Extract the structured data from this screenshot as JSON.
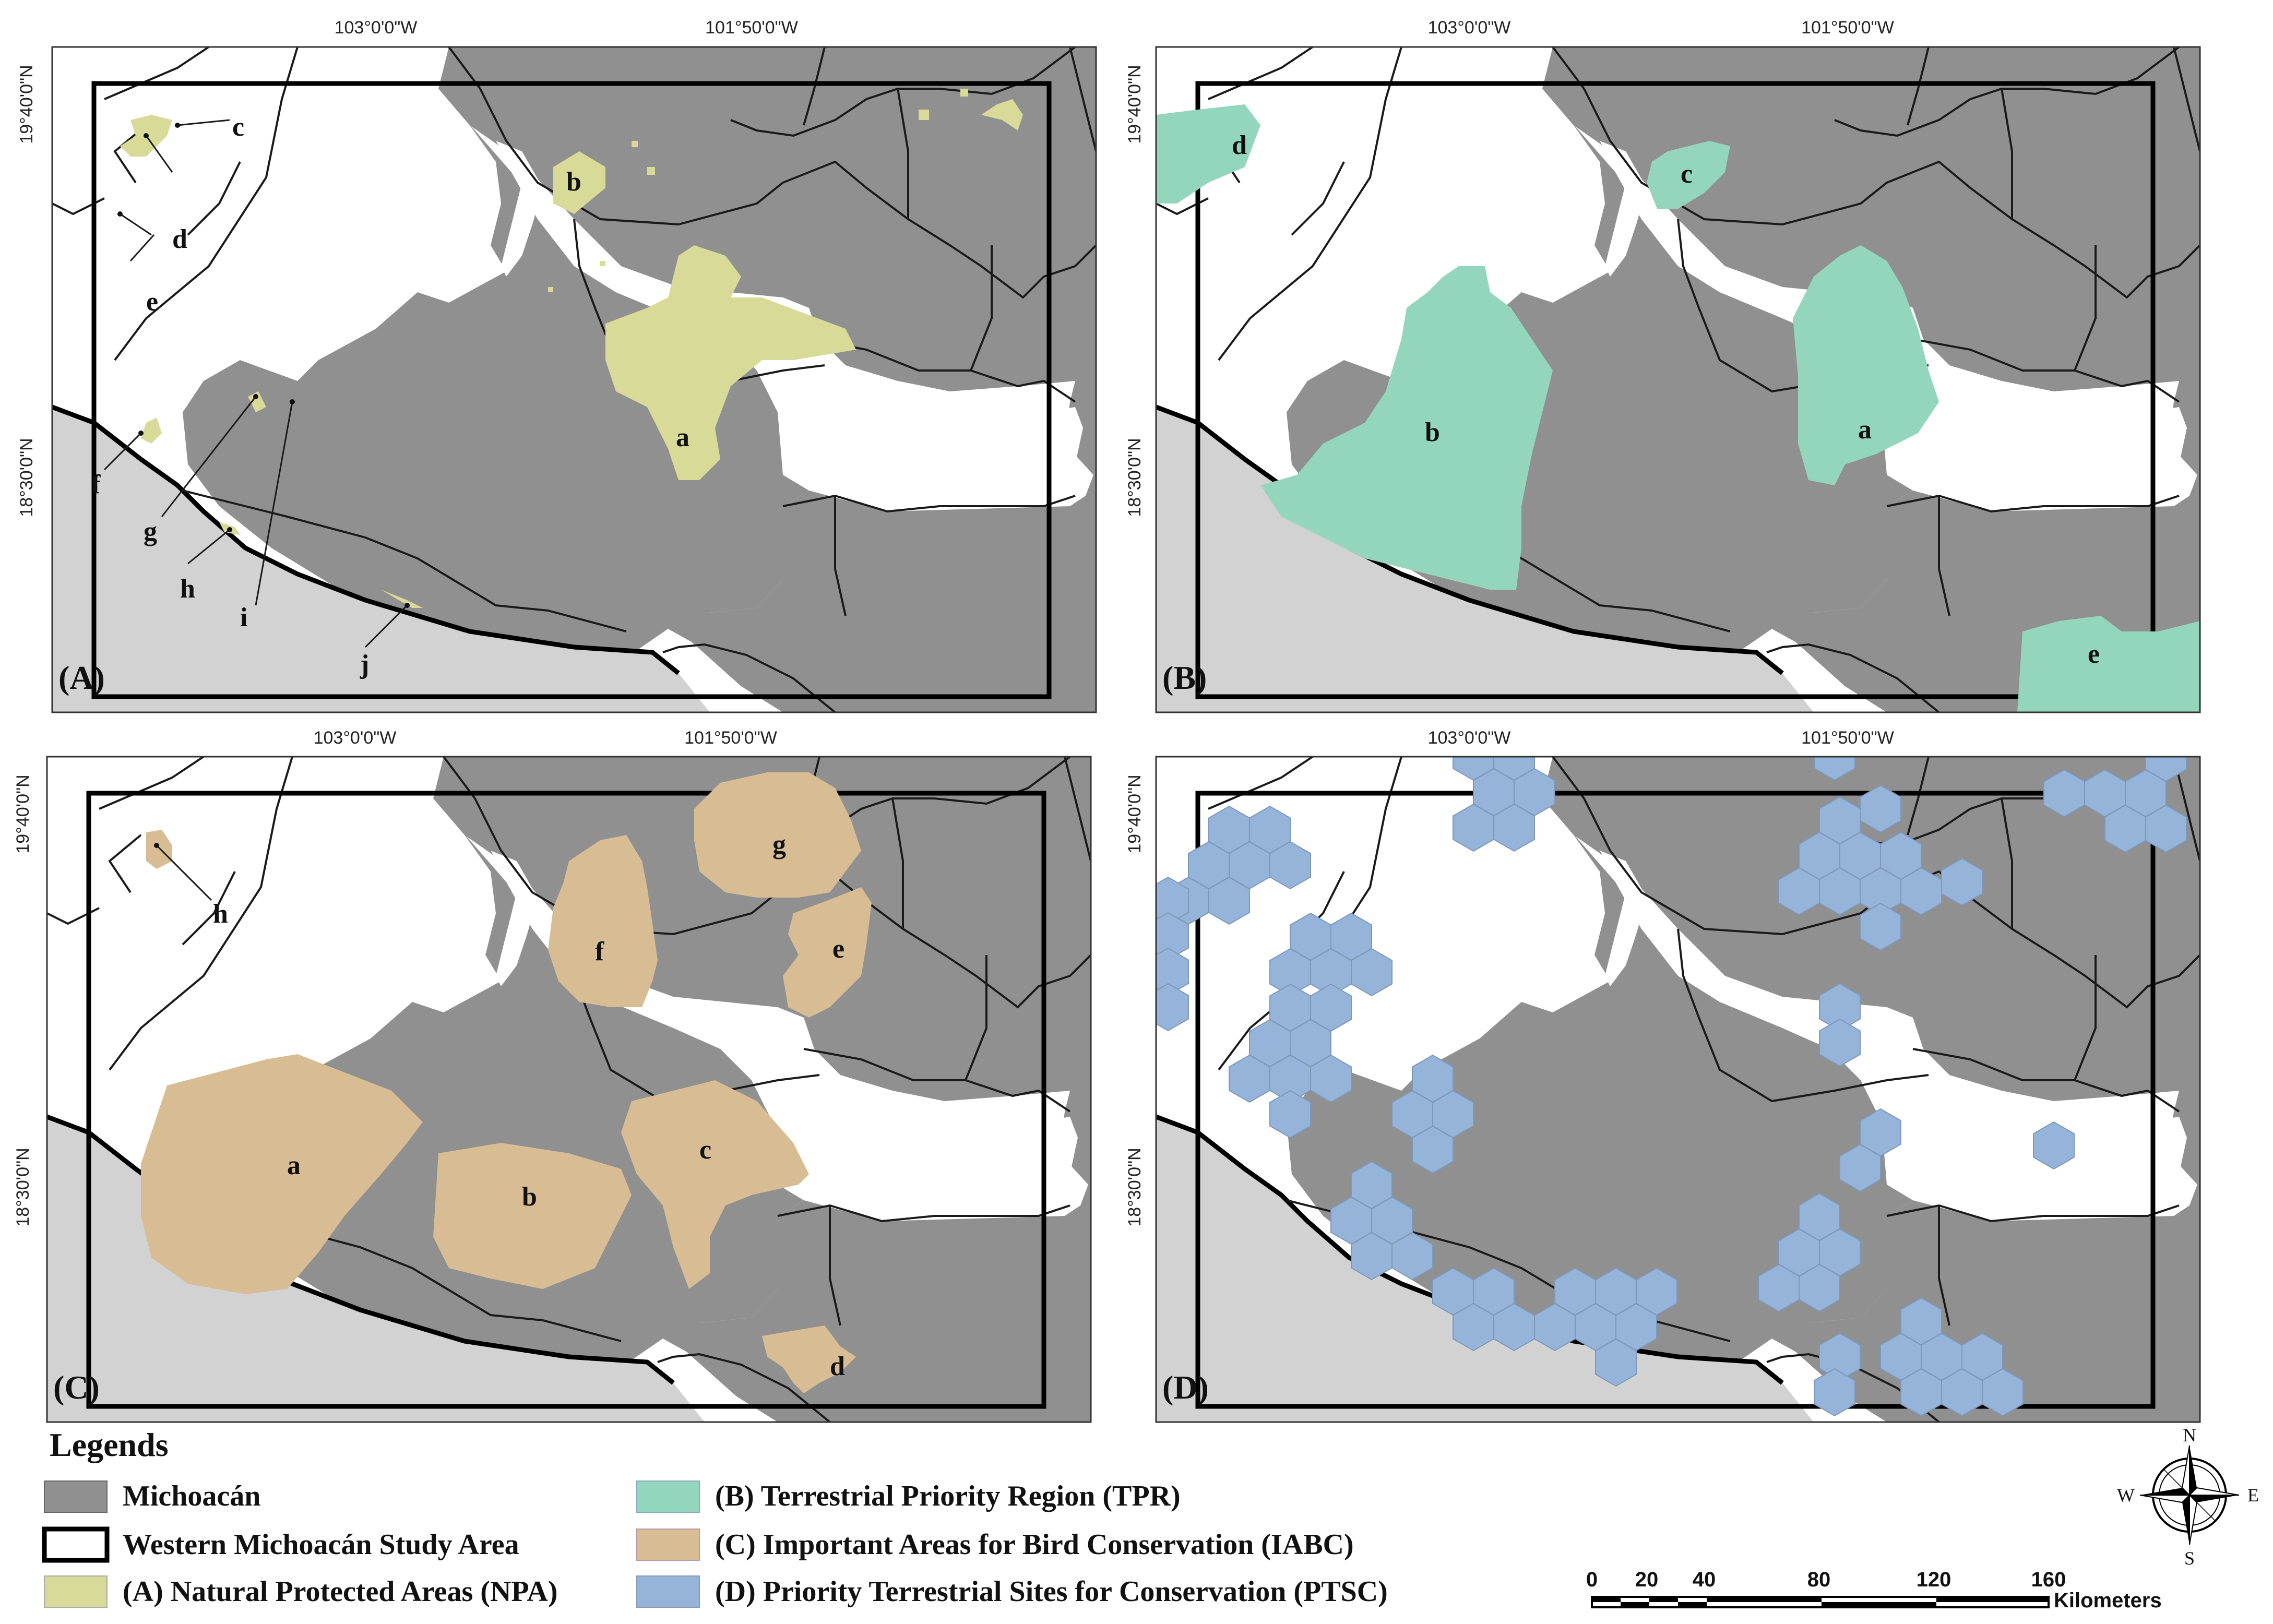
{
  "colors": {
    "michoacan": "#909090",
    "ocean": "#d2d2d2",
    "npa": "#d8db97",
    "tpr": "#94d5bd",
    "iabc": "#d8bd94",
    "ptsc": "#96b4d9",
    "line": "#1a1a1a"
  },
  "coords": {
    "lon_west": "103°0'0\"W",
    "lon_east": "101°50'0\"W",
    "lat_north": "19°40'0\"N",
    "lat_south": "18°30'0\"N"
  },
  "panels": [
    {
      "id": "A",
      "label": "(A)",
      "areas": [
        "a",
        "b",
        "c",
        "d",
        "e",
        "f",
        "g",
        "h",
        "i",
        "j"
      ]
    },
    {
      "id": "B",
      "label": "(B)",
      "areas": [
        "a",
        "b",
        "c",
        "d",
        "e"
      ]
    },
    {
      "id": "C",
      "label": "(C)",
      "areas": [
        "a",
        "b",
        "c",
        "d",
        "e",
        "f",
        "g",
        "h"
      ]
    },
    {
      "id": "D",
      "label": "(D)",
      "areas": []
    }
  ],
  "legend": {
    "title": "Legends",
    "items": [
      {
        "key": "michoacan",
        "label": "Michoacán"
      },
      {
        "key": "study",
        "label": "Western Michoacán Study Area"
      },
      {
        "key": "npa",
        "label": "(A) Natural Protected Areas (NPA)"
      },
      {
        "key": "tpr",
        "label": "(B) Terrestrial Priority Region (TPR)"
      },
      {
        "key": "iabc",
        "label": "(C) Important Areas for Bird Conservation (IABC)"
      },
      {
        "key": "ptsc",
        "label": "(D) Priority Terrestrial Sites for Conservation (PTSC)"
      }
    ]
  },
  "scale": {
    "ticks": [
      "0",
      "20",
      "40",
      "80",
      "120",
      "160"
    ],
    "unit": "Kilometers"
  },
  "north_arrow": {
    "n": "N",
    "e": "E",
    "s": "S",
    "w": "W"
  }
}
